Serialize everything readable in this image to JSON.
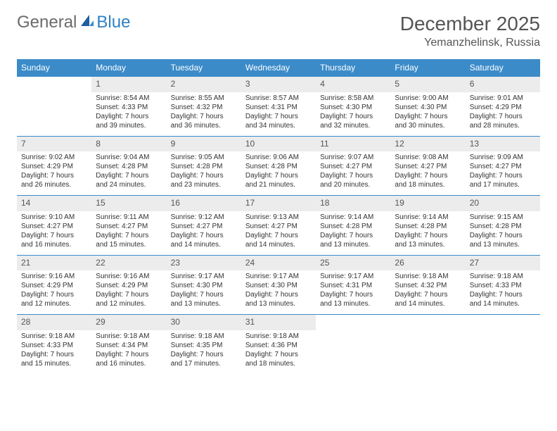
{
  "logo": {
    "general": "General",
    "blue": "Blue"
  },
  "title": "December 2025",
  "location": "Yemanzhelinsk, Russia",
  "colors": {
    "header_bg": "#3b8bc9",
    "header_text": "#ffffff",
    "daynum_bg": "#ececec",
    "cell_border": "#3b8bc9",
    "logo_gray": "#6b6b6b",
    "logo_blue": "#2f7fc2"
  },
  "weekdays": [
    "Sunday",
    "Monday",
    "Tuesday",
    "Wednesday",
    "Thursday",
    "Friday",
    "Saturday"
  ],
  "weeks": [
    {
      "nums": [
        "",
        "1",
        "2",
        "3",
        "4",
        "5",
        "6"
      ],
      "cells": [
        "",
        "Sunrise: 8:54 AM\nSunset: 4:33 PM\nDaylight: 7 hours and 39 minutes.",
        "Sunrise: 8:55 AM\nSunset: 4:32 PM\nDaylight: 7 hours and 36 minutes.",
        "Sunrise: 8:57 AM\nSunset: 4:31 PM\nDaylight: 7 hours and 34 minutes.",
        "Sunrise: 8:58 AM\nSunset: 4:30 PM\nDaylight: 7 hours and 32 minutes.",
        "Sunrise: 9:00 AM\nSunset: 4:30 PM\nDaylight: 7 hours and 30 minutes.",
        "Sunrise: 9:01 AM\nSunset: 4:29 PM\nDaylight: 7 hours and 28 minutes."
      ]
    },
    {
      "nums": [
        "7",
        "8",
        "9",
        "10",
        "11",
        "12",
        "13"
      ],
      "cells": [
        "Sunrise: 9:02 AM\nSunset: 4:29 PM\nDaylight: 7 hours and 26 minutes.",
        "Sunrise: 9:04 AM\nSunset: 4:28 PM\nDaylight: 7 hours and 24 minutes.",
        "Sunrise: 9:05 AM\nSunset: 4:28 PM\nDaylight: 7 hours and 23 minutes.",
        "Sunrise: 9:06 AM\nSunset: 4:28 PM\nDaylight: 7 hours and 21 minutes.",
        "Sunrise: 9:07 AM\nSunset: 4:27 PM\nDaylight: 7 hours and 20 minutes.",
        "Sunrise: 9:08 AM\nSunset: 4:27 PM\nDaylight: 7 hours and 18 minutes.",
        "Sunrise: 9:09 AM\nSunset: 4:27 PM\nDaylight: 7 hours and 17 minutes."
      ]
    },
    {
      "nums": [
        "14",
        "15",
        "16",
        "17",
        "18",
        "19",
        "20"
      ],
      "cells": [
        "Sunrise: 9:10 AM\nSunset: 4:27 PM\nDaylight: 7 hours and 16 minutes.",
        "Sunrise: 9:11 AM\nSunset: 4:27 PM\nDaylight: 7 hours and 15 minutes.",
        "Sunrise: 9:12 AM\nSunset: 4:27 PM\nDaylight: 7 hours and 14 minutes.",
        "Sunrise: 9:13 AM\nSunset: 4:27 PM\nDaylight: 7 hours and 14 minutes.",
        "Sunrise: 9:14 AM\nSunset: 4:28 PM\nDaylight: 7 hours and 13 minutes.",
        "Sunrise: 9:14 AM\nSunset: 4:28 PM\nDaylight: 7 hours and 13 minutes.",
        "Sunrise: 9:15 AM\nSunset: 4:28 PM\nDaylight: 7 hours and 13 minutes."
      ]
    },
    {
      "nums": [
        "21",
        "22",
        "23",
        "24",
        "25",
        "26",
        "27"
      ],
      "cells": [
        "Sunrise: 9:16 AM\nSunset: 4:29 PM\nDaylight: 7 hours and 12 minutes.",
        "Sunrise: 9:16 AM\nSunset: 4:29 PM\nDaylight: 7 hours and 12 minutes.",
        "Sunrise: 9:17 AM\nSunset: 4:30 PM\nDaylight: 7 hours and 13 minutes.",
        "Sunrise: 9:17 AM\nSunset: 4:30 PM\nDaylight: 7 hours and 13 minutes.",
        "Sunrise: 9:17 AM\nSunset: 4:31 PM\nDaylight: 7 hours and 13 minutes.",
        "Sunrise: 9:18 AM\nSunset: 4:32 PM\nDaylight: 7 hours and 14 minutes.",
        "Sunrise: 9:18 AM\nSunset: 4:33 PM\nDaylight: 7 hours and 14 minutes."
      ]
    },
    {
      "nums": [
        "28",
        "29",
        "30",
        "31",
        "",
        "",
        ""
      ],
      "cells": [
        "Sunrise: 9:18 AM\nSunset: 4:33 PM\nDaylight: 7 hours and 15 minutes.",
        "Sunrise: 9:18 AM\nSunset: 4:34 PM\nDaylight: 7 hours and 16 minutes.",
        "Sunrise: 9:18 AM\nSunset: 4:35 PM\nDaylight: 7 hours and 17 minutes.",
        "Sunrise: 9:18 AM\nSunset: 4:36 PM\nDaylight: 7 hours and 18 minutes.",
        "",
        "",
        ""
      ]
    }
  ]
}
